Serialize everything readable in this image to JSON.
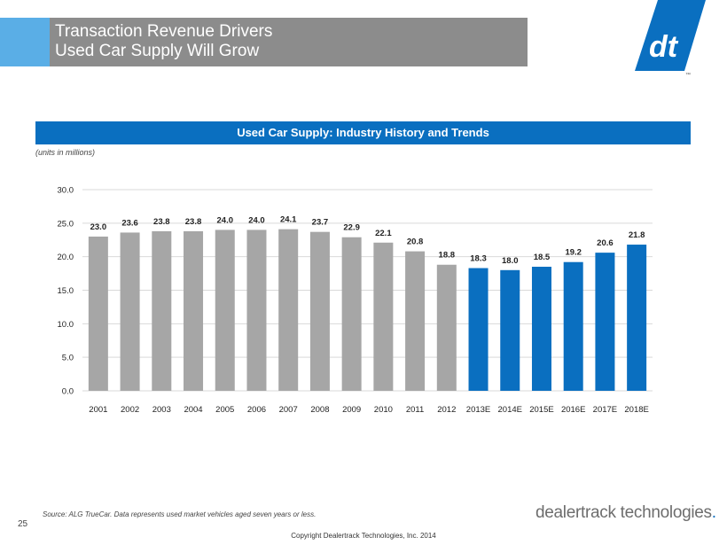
{
  "header": {
    "title_line1": "Transaction Revenue Drivers",
    "title_line2": "Used Car Supply Will Grow"
  },
  "logo": {
    "icon": "dealertrack-dt-logo-icon",
    "text": "dt",
    "trademark": "™"
  },
  "colors": {
    "header_accent": "#5aaee6",
    "header_bg": "#8c8c8c",
    "brand_blue": "#0a6fc0",
    "historical_bar": "#a6a6a6",
    "estimate_bar": "#0a6fc0"
  },
  "section_header": "Used Car Supply: Industry History and Trends",
  "units_note": "(units in millions)",
  "chart_data": {
    "type": "bar",
    "categories": [
      "2001",
      "2002",
      "2003",
      "2004",
      "2005",
      "2006",
      "2007",
      "2008",
      "2009",
      "2010",
      "2011",
      "2012",
      "2013E",
      "2014E",
      "2015E",
      "2016E",
      "2017E",
      "2018E"
    ],
    "values": [
      23.0,
      23.6,
      23.8,
      23.8,
      24.0,
      24.0,
      24.1,
      23.7,
      22.9,
      22.1,
      20.8,
      18.8,
      18.3,
      18.0,
      18.5,
      19.2,
      20.6,
      21.8
    ],
    "value_labels": [
      "23.0",
      "23.6",
      "23.8",
      "23.8",
      "24.0",
      "24.0",
      "24.1",
      "23.7",
      "22.9",
      "22.1",
      "20.8",
      "18.8",
      "18.3",
      "18.0",
      "18.5",
      "19.2",
      "20.6",
      "21.8"
    ],
    "estimate": [
      false,
      false,
      false,
      false,
      false,
      false,
      false,
      false,
      false,
      false,
      false,
      false,
      true,
      true,
      true,
      true,
      true,
      true
    ],
    "ylim": [
      0,
      30
    ],
    "yticks": [
      "0.0",
      "5.0",
      "10.0",
      "15.0",
      "20.0",
      "25.0",
      "30.0"
    ],
    "grid": true,
    "title": "",
    "xlabel": "",
    "ylabel": ""
  },
  "footer": {
    "source": "Source: ALG TrueCar. Data represents used market vehicles aged seven years or less.",
    "page_number": "25",
    "brand_text": "dealertrack technologies",
    "brand_dot": ".",
    "copyright": "Copyright Dealertrack Technologies, Inc. 2014"
  }
}
